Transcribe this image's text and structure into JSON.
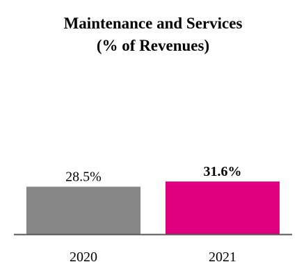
{
  "chart_data": {
    "type": "bar",
    "title_line1": "Maintenance and Services",
    "title_line2": "(% of Revenues)",
    "categories": [
      "2020",
      "2021"
    ],
    "values": [
      28.5,
      31.6
    ],
    "value_labels": [
      "28.5%",
      "31.6%"
    ],
    "value_label_bold": [
      false,
      true
    ],
    "colors": [
      "#878787",
      "#e0007f"
    ],
    "axis_color": "#555555",
    "ylim": [
      0,
      100
    ],
    "grid": false
  }
}
